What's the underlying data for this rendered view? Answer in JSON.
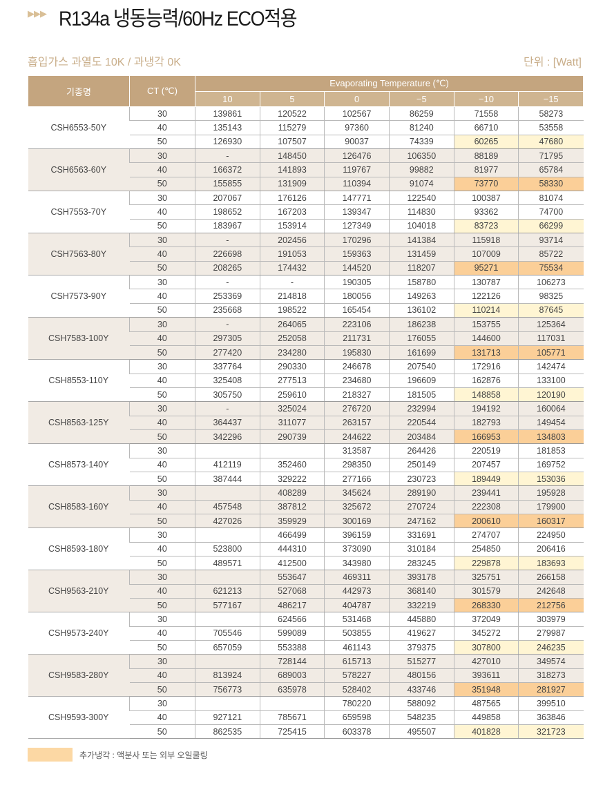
{
  "title": "R134a 냉동능력/60Hz ECO적용",
  "title_icon": "triple-arrow-icon",
  "subtitle": "흡입가스 과열도 10K / 과냉각 0K",
  "unit": "단위 : [Watt]",
  "colors": {
    "header": "#c4a57f",
    "group_alt": "#f1ebe4",
    "highlight_light": "#fff5d3",
    "highlight_dark": "#fbcf98",
    "legend_swatch": "#fcd8a4"
  },
  "table": {
    "headers": {
      "model": "기종명",
      "ct": "CT (℃)",
      "evap": "Evaporating Temperature (℃)",
      "temps": [
        "10",
        "5",
        "0",
        "−5",
        "−10",
        "−15"
      ]
    },
    "highlight": {
      "ct": "50",
      "columns": [
        "−10",
        "−15"
      ]
    },
    "models": [
      {
        "name": "CSH6553-50Y",
        "rows": [
          [
            "30",
            "139861",
            "120522",
            "102567",
            "86259",
            "71558",
            "58273"
          ],
          [
            "40",
            "135143",
            "115279",
            "97360",
            "81240",
            "66710",
            "53558"
          ],
          [
            "50",
            "126930",
            "107507",
            "90037",
            "74339",
            "60265",
            "47680"
          ]
        ]
      },
      {
        "name": "CSH6563-60Y",
        "rows": [
          [
            "30",
            "-",
            "148450",
            "126476",
            "106350",
            "88189",
            "71795"
          ],
          [
            "40",
            "166372",
            "141893",
            "119767",
            "99882",
            "81977",
            "65784"
          ],
          [
            "50",
            "155855",
            "131909",
            "110394",
            "91074",
            "73770",
            "58330"
          ]
        ]
      },
      {
        "name": "CSH7553-70Y",
        "rows": [
          [
            "30",
            "207067",
            "176126",
            "147771",
            "122540",
            "100387",
            "81074"
          ],
          [
            "40",
            "198652",
            "167203",
            "139347",
            "114830",
            "93362",
            "74700"
          ],
          [
            "50",
            "183967",
            "153914",
            "127349",
            "104018",
            "83723",
            "66299"
          ]
        ]
      },
      {
        "name": "CSH7563-80Y",
        "rows": [
          [
            "30",
            "-",
            "202456",
            "170296",
            "141384",
            "115918",
            "93714"
          ],
          [
            "40",
            "226698",
            "191053",
            "159363",
            "131459",
            "107009",
            "85722"
          ],
          [
            "50",
            "208265",
            "174432",
            "144520",
            "118207",
            "95271",
            "75534"
          ]
        ]
      },
      {
        "name": "CSH7573-90Y",
        "rows": [
          [
            "30",
            "-",
            "-",
            "190305",
            "158780",
            "130787",
            "106273"
          ],
          [
            "40",
            "253369",
            "214818",
            "180056",
            "149263",
            "122126",
            "98325"
          ],
          [
            "50",
            "235668",
            "198522",
            "165454",
            "136102",
            "110214",
            "87645"
          ]
        ]
      },
      {
        "name": "CSH7583-100Y",
        "rows": [
          [
            "30",
            "-",
            "264065",
            "223106",
            "186238",
            "153755",
            "125364"
          ],
          [
            "40",
            "297305",
            "252058",
            "211731",
            "176055",
            "144600",
            "117031"
          ],
          [
            "50",
            "277420",
            "234280",
            "195830",
            "161699",
            "131713",
            "105771"
          ]
        ]
      },
      {
        "name": "CSH8553-110Y",
        "rows": [
          [
            "30",
            "337764",
            "290330",
            "246678",
            "207540",
            "172916",
            "142474"
          ],
          [
            "40",
            "325408",
            "277513",
            "234680",
            "196609",
            "162876",
            "133100"
          ],
          [
            "50",
            "305750",
            "259610",
            "218327",
            "181505",
            "148858",
            "120190"
          ]
        ]
      },
      {
        "name": "CSH8563-125Y",
        "rows": [
          [
            "30",
            "-",
            "325024",
            "276720",
            "232994",
            "194192",
            "160064"
          ],
          [
            "40",
            "364437",
            "311077",
            "263157",
            "220544",
            "182793",
            "149454"
          ],
          [
            "50",
            "342296",
            "290739",
            "244622",
            "203484",
            "166953",
            "134803"
          ]
        ]
      },
      {
        "name": "CSH8573-140Y",
        "rows": [
          [
            "30",
            "",
            "",
            "313587",
            "264426",
            "220519",
            "181853"
          ],
          [
            "40",
            "412119",
            "352460",
            "298350",
            "250149",
            "207457",
            "169752"
          ],
          [
            "50",
            "387444",
            "329222",
            "277166",
            "230723",
            "189449",
            "153036"
          ]
        ]
      },
      {
        "name": "CSH8583-160Y",
        "rows": [
          [
            "30",
            "",
            "408289",
            "345624",
            "289190",
            "239441",
            "195928"
          ],
          [
            "40",
            "457548",
            "387812",
            "325672",
            "270724",
            "222308",
            "179900"
          ],
          [
            "50",
            "427026",
            "359929",
            "300169",
            "247162",
            "200610",
            "160317"
          ]
        ]
      },
      {
        "name": "CSH8593-180Y",
        "rows": [
          [
            "30",
            "",
            "466499",
            "396159",
            "331691",
            "274707",
            "224950"
          ],
          [
            "40",
            "523800",
            "444310",
            "373090",
            "310184",
            "254850",
            "206416"
          ],
          [
            "50",
            "489571",
            "412500",
            "343980",
            "283245",
            "229878",
            "183693"
          ]
        ]
      },
      {
        "name": "CSH9563-210Y",
        "rows": [
          [
            "30",
            "",
            "553647",
            "469311",
            "393178",
            "325751",
            "266158"
          ],
          [
            "40",
            "621213",
            "527068",
            "442973",
            "368140",
            "301579",
            "242648"
          ],
          [
            "50",
            "577167",
            "486217",
            "404787",
            "332219",
            "268330",
            "212756"
          ]
        ]
      },
      {
        "name": "CSH9573-240Y",
        "rows": [
          [
            "30",
            "",
            "624566",
            "531468",
            "445880",
            "372049",
            "303979"
          ],
          [
            "40",
            "705546",
            "599089",
            "503855",
            "419627",
            "345272",
            "279987"
          ],
          [
            "50",
            "657059",
            "553388",
            "461143",
            "379375",
            "307800",
            "246235"
          ]
        ]
      },
      {
        "name": "CSH9583-280Y",
        "rows": [
          [
            "30",
            "",
            "728144",
            "615713",
            "515277",
            "427010",
            "349574"
          ],
          [
            "40",
            "813924",
            "689003",
            "578227",
            "480156",
            "393611",
            "318273"
          ],
          [
            "50",
            "756773",
            "635978",
            "528402",
            "433746",
            "351948",
            "281927"
          ]
        ]
      },
      {
        "name": "CSH9593-300Y",
        "rows": [
          [
            "30",
            "",
            "",
            "780220",
            "588092",
            "487565",
            "399510"
          ],
          [
            "40",
            "927121",
            "785671",
            "659598",
            "548235",
            "449858",
            "363846"
          ],
          [
            "50",
            "862535",
            "725415",
            "603378",
            "495507",
            "401828",
            "321723"
          ]
        ]
      }
    ]
  },
  "legend": {
    "label": "추가냉각 : 액분사 또는 외부 오일쿨링"
  }
}
